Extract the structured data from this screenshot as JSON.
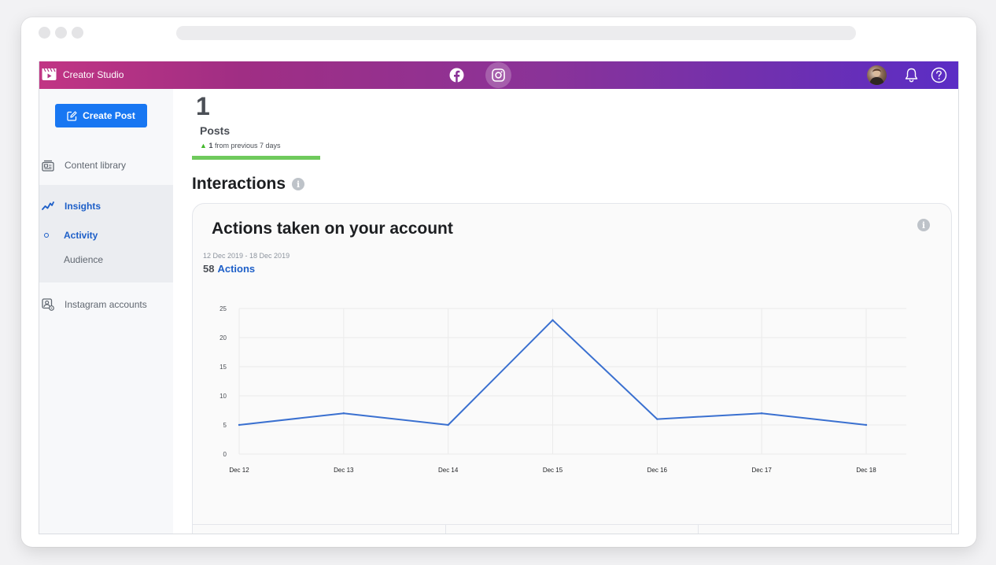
{
  "app": {
    "title": "Creator Studio"
  },
  "sidebar": {
    "create_label": "Create Post",
    "content_library": "Content library",
    "insights": "Insights",
    "activity": "Activity",
    "audience": "Audience",
    "instagram_accounts": "Instagram accounts"
  },
  "stats": {
    "posts_count": "1",
    "posts_label": "Posts",
    "change_value": "1",
    "change_text": "from previous 7 days"
  },
  "interactions": {
    "title": "Interactions",
    "card_title": "Actions taken on your account",
    "date_range": "12 Dec 2019 - 18 Dec 2019",
    "total_value": "58",
    "total_label": "Actions"
  },
  "colors": {
    "accent": "#1877f2",
    "line": "#3a70d0",
    "positive": "#42b72a"
  },
  "chart_data": {
    "type": "line",
    "categories": [
      "Dec 12",
      "Dec 13",
      "Dec 14",
      "Dec 15",
      "Dec 16",
      "Dec 17",
      "Dec 18"
    ],
    "series": [
      {
        "values": [
          5,
          7,
          5,
          23,
          6,
          7,
          5
        ]
      }
    ],
    "ylim": [
      0,
      25
    ],
    "yticks": [
      0,
      5,
      10,
      15,
      20,
      25
    ],
    "grid": true,
    "title": "",
    "xlabel": "",
    "ylabel": ""
  }
}
